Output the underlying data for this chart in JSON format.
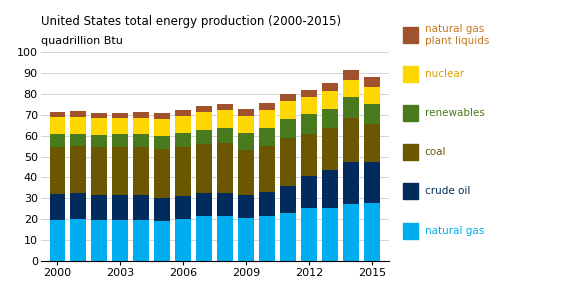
{
  "years": [
    2000,
    2001,
    2002,
    2003,
    2004,
    2005,
    2006,
    2007,
    2008,
    2009,
    2010,
    2011,
    2012,
    2013,
    2014,
    2015
  ],
  "natural_gas": [
    19.7,
    20.2,
    19.4,
    19.6,
    19.5,
    19.1,
    20.1,
    21.7,
    21.4,
    20.6,
    21.5,
    23.0,
    25.3,
    25.6,
    27.5,
    27.9
  ],
  "crude_oil": [
    12.4,
    12.3,
    12.3,
    12.1,
    11.9,
    11.3,
    11.0,
    10.7,
    11.1,
    11.0,
    11.6,
    13.0,
    15.4,
    17.9,
    19.9,
    19.7
  ],
  "coal": [
    22.7,
    22.7,
    22.7,
    22.7,
    23.0,
    23.2,
    23.3,
    23.5,
    23.9,
    21.5,
    22.0,
    23.0,
    20.2,
    20.2,
    21.2,
    17.9
  ],
  "renewables": [
    6.1,
    5.8,
    6.1,
    6.2,
    6.3,
    6.4,
    6.9,
    6.9,
    7.3,
    8.0,
    8.7,
    9.2,
    9.3,
    9.3,
    9.8,
    9.7
  ],
  "nuclear": [
    8.0,
    8.0,
    7.8,
    7.9,
    8.0,
    8.2,
    8.2,
    8.5,
    8.5,
    8.5,
    8.4,
    8.3,
    8.2,
    8.3,
    8.3,
    8.3
  ],
  "ngpl": [
    2.6,
    2.6,
    2.6,
    2.6,
    2.7,
    2.7,
    2.8,
    2.9,
    3.1,
    3.1,
    3.3,
    3.4,
    3.5,
    3.8,
    4.7,
    4.7
  ],
  "colors": {
    "natural_gas": "#00AEEF",
    "crude_oil": "#002B5C",
    "coal": "#6B5700",
    "renewables": "#4A7A1E",
    "nuclear": "#FFD700",
    "ngpl": "#A0522D"
  },
  "legend_text_colors": {
    "ngpl": "#C47A20",
    "nuclear": "#DAA000",
    "renewables": "#4A7A1E",
    "coal": "#6B5700",
    "crude_oil": "#002B5C",
    "natural_gas": "#00AEEF"
  },
  "title": "United States total energy production (2000-2015)",
  "subtitle": "quadrillion Btu",
  "ylim": [
    0,
    100
  ],
  "yticks": [
    0,
    10,
    20,
    30,
    40,
    50,
    60,
    70,
    80,
    90,
    100
  ],
  "xticks": [
    2000,
    2003,
    2006,
    2009,
    2012,
    2015
  ],
  "background_color": "#ffffff",
  "grid_color": "#cccccc",
  "bar_width": 0.75,
  "xlim": [
    1999.2,
    2015.8
  ]
}
